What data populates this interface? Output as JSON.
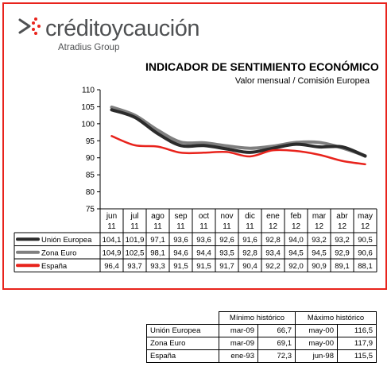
{
  "brand": {
    "name": "créditoycaución",
    "subtitle": "Atradius Group"
  },
  "chart_data": {
    "type": "line",
    "title": "INDICADOR DE SENTIMIENTO ECONÓMICO",
    "subtitle": "Valor mensual / Comisión Europea",
    "ylim": [
      75,
      110
    ],
    "yticks": [
      75,
      80,
      85,
      90,
      95,
      100,
      105,
      110
    ],
    "categories": [
      [
        "jun",
        "11"
      ],
      [
        "jul",
        "11"
      ],
      [
        "ago",
        "11"
      ],
      [
        "sep",
        "11"
      ],
      [
        "oct",
        "11"
      ],
      [
        "nov",
        "11"
      ],
      [
        "dic",
        "11"
      ],
      [
        "ene",
        "12"
      ],
      [
        "feb",
        "12"
      ],
      [
        "mar",
        "12"
      ],
      [
        "abr",
        "12"
      ],
      [
        "may",
        "12"
      ]
    ],
    "series": [
      {
        "name": "Unión Europea",
        "color": "#2b2b2b",
        "values": [
          104.1,
          101.9,
          97.1,
          93.6,
          93.6,
          92.6,
          91.6,
          92.8,
          94.0,
          93.2,
          93.2,
          90.5
        ],
        "labels": [
          "104,1",
          "101,9",
          "97,1",
          "93,6",
          "93,6",
          "92,6",
          "91,6",
          "92,8",
          "94,0",
          "93,2",
          "93,2",
          "90,5"
        ]
      },
      {
        "name": "Zona Euro",
        "color": "#7f7f7f",
        "values": [
          104.9,
          102.5,
          98.1,
          94.6,
          94.4,
          93.5,
          92.8,
          93.4,
          94.5,
          94.5,
          92.9,
          90.6
        ],
        "labels": [
          "104,9",
          "102,5",
          "98,1",
          "94,6",
          "94,4",
          "93,5",
          "92,8",
          "93,4",
          "94,5",
          "94,5",
          "92,9",
          "90,6"
        ]
      },
      {
        "name": "España",
        "color": "#e8231c",
        "values": [
          96.4,
          93.7,
          93.3,
          91.5,
          91.5,
          91.7,
          90.4,
          92.2,
          92.0,
          90.9,
          89.1,
          88.1
        ],
        "labels": [
          "96,4",
          "93,7",
          "93,3",
          "91,5",
          "91,5",
          "91,7",
          "90,4",
          "92,2",
          "92,0",
          "90,9",
          "89,1",
          "88,1"
        ]
      }
    ]
  },
  "historic_table": {
    "min_header": "Mínimo histórico",
    "max_header": "Máximo histórico",
    "rows": [
      {
        "name": "Unión Europea",
        "min_date": "mar-09",
        "min_value": "66,7",
        "max_date": "may-00",
        "max_value": "116,5"
      },
      {
        "name": "Zona Euro",
        "min_date": "mar-09",
        "min_value": "69,1",
        "max_date": "may-00",
        "max_value": "117,9"
      },
      {
        "name": "España",
        "min_date": "ene-93",
        "min_value": "72,3",
        "max_date": "jun-98",
        "max_value": "115,5"
      }
    ]
  }
}
